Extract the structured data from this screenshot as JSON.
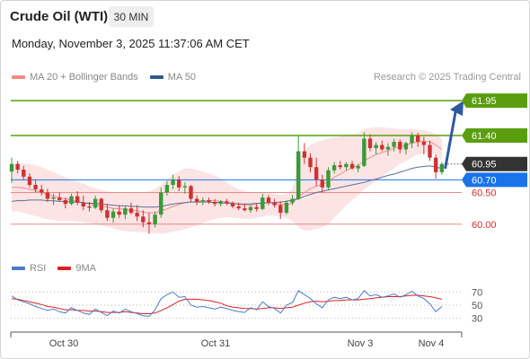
{
  "header": {
    "instrument": "Crude Oil (WTI)",
    "timeframe": "30 MIN",
    "timestamp": "Monday, November 3, 2025 11:37:06 AM CET"
  },
  "legend": {
    "ma20_label": "MA 20 + Bollinger Bands",
    "ma20_color": "#f28b82",
    "ma50_label": "MA 50",
    "ma50_color": "#2d5a8c"
  },
  "credit": "Research © 2025 Trading Central",
  "rsi_legend": {
    "rsi_label": "RSI",
    "rsi_color": "#4a7cc7",
    "ma_label": "9MA",
    "ma_color": "#d92121"
  },
  "chart_data": {
    "type": "candlestick",
    "y_range": [
      59.6,
      62.15
    ],
    "x_labels": [
      "Oct 30",
      "Oct 31",
      "Nov 3",
      "Nov 4"
    ],
    "candles": [
      {
        "o": 60.83,
        "h": 61.05,
        "l": 60.65,
        "c": 60.95
      },
      {
        "o": 60.95,
        "h": 61.0,
        "l": 60.8,
        "c": 60.86
      },
      {
        "o": 60.86,
        "h": 60.92,
        "l": 60.7,
        "c": 60.75
      },
      {
        "o": 60.75,
        "h": 60.8,
        "l": 60.58,
        "c": 60.62
      },
      {
        "o": 60.62,
        "h": 60.7,
        "l": 60.5,
        "c": 60.55
      },
      {
        "o": 60.55,
        "h": 60.62,
        "l": 60.45,
        "c": 60.5
      },
      {
        "o": 60.5,
        "h": 60.56,
        "l": 60.35,
        "c": 60.4
      },
      {
        "o": 60.4,
        "h": 60.48,
        "l": 60.3,
        "c": 60.42
      },
      {
        "o": 60.42,
        "h": 60.5,
        "l": 60.35,
        "c": 60.38
      },
      {
        "o": 60.38,
        "h": 60.42,
        "l": 60.25,
        "c": 60.32
      },
      {
        "o": 60.32,
        "h": 60.48,
        "l": 60.3,
        "c": 60.44
      },
      {
        "o": 60.44,
        "h": 60.52,
        "l": 60.3,
        "c": 60.34
      },
      {
        "o": 60.34,
        "h": 60.45,
        "l": 60.22,
        "c": 60.28
      },
      {
        "o": 60.28,
        "h": 60.35,
        "l": 60.2,
        "c": 60.26
      },
      {
        "o": 60.26,
        "h": 60.45,
        "l": 60.24,
        "c": 60.4
      },
      {
        "o": 60.4,
        "h": 60.42,
        "l": 60.18,
        "c": 60.22
      },
      {
        "o": 60.22,
        "h": 60.32,
        "l": 60.05,
        "c": 60.1
      },
      {
        "o": 60.1,
        "h": 60.25,
        "l": 60.02,
        "c": 60.2
      },
      {
        "o": 60.2,
        "h": 60.3,
        "l": 60.1,
        "c": 60.15
      },
      {
        "o": 60.15,
        "h": 60.28,
        "l": 60.08,
        "c": 60.25
      },
      {
        "o": 60.25,
        "h": 60.34,
        "l": 60.15,
        "c": 60.18
      },
      {
        "o": 60.18,
        "h": 60.3,
        "l": 60.05,
        "c": 60.12
      },
      {
        "o": 60.12,
        "h": 60.22,
        "l": 59.95,
        "c": 60.03
      },
      {
        "o": 60.03,
        "h": 60.18,
        "l": 59.85,
        "c": 60.0
      },
      {
        "o": 60.0,
        "h": 60.2,
        "l": 59.95,
        "c": 60.15
      },
      {
        "o": 60.15,
        "h": 60.58,
        "l": 60.1,
        "c": 60.5
      },
      {
        "o": 60.5,
        "h": 60.68,
        "l": 60.45,
        "c": 60.62
      },
      {
        "o": 60.62,
        "h": 60.78,
        "l": 60.55,
        "c": 60.7
      },
      {
        "o": 60.7,
        "h": 60.76,
        "l": 60.52,
        "c": 60.58
      },
      {
        "o": 60.58,
        "h": 60.66,
        "l": 60.48,
        "c": 60.6
      },
      {
        "o": 60.6,
        "h": 60.62,
        "l": 60.35,
        "c": 60.4
      },
      {
        "o": 60.4,
        "h": 60.45,
        "l": 60.3,
        "c": 60.36
      },
      {
        "o": 60.36,
        "h": 60.42,
        "l": 60.3,
        "c": 60.38
      },
      {
        "o": 60.38,
        "h": 60.42,
        "l": 60.32,
        "c": 60.35
      },
      {
        "o": 60.35,
        "h": 60.4,
        "l": 60.28,
        "c": 60.32
      },
      {
        "o": 60.32,
        "h": 60.38,
        "l": 60.28,
        "c": 60.36
      },
      {
        "o": 60.36,
        "h": 60.4,
        "l": 60.3,
        "c": 60.33
      },
      {
        "o": 60.33,
        "h": 60.36,
        "l": 60.25,
        "c": 60.28
      },
      {
        "o": 60.28,
        "h": 60.34,
        "l": 60.22,
        "c": 60.25
      },
      {
        "o": 60.25,
        "h": 60.32,
        "l": 60.2,
        "c": 60.22
      },
      {
        "o": 60.22,
        "h": 60.3,
        "l": 60.18,
        "c": 60.27
      },
      {
        "o": 60.27,
        "h": 60.32,
        "l": 60.2,
        "c": 60.24
      },
      {
        "o": 60.24,
        "h": 60.48,
        "l": 60.22,
        "c": 60.42
      },
      {
        "o": 60.42,
        "h": 60.46,
        "l": 60.3,
        "c": 60.34
      },
      {
        "o": 60.34,
        "h": 60.4,
        "l": 60.26,
        "c": 60.3
      },
      {
        "o": 60.3,
        "h": 60.36,
        "l": 60.08,
        "c": 60.18
      },
      {
        "o": 60.18,
        "h": 60.38,
        "l": 60.15,
        "c": 60.34
      },
      {
        "o": 60.34,
        "h": 60.46,
        "l": 60.3,
        "c": 60.4
      },
      {
        "o": 60.4,
        "h": 61.4,
        "l": 60.38,
        "c": 61.15
      },
      {
        "o": 61.15,
        "h": 61.28,
        "l": 60.95,
        "c": 61.05
      },
      {
        "o": 61.05,
        "h": 61.12,
        "l": 60.82,
        "c": 60.9
      },
      {
        "o": 60.9,
        "h": 61.05,
        "l": 60.6,
        "c": 60.7
      },
      {
        "o": 60.7,
        "h": 60.78,
        "l": 60.5,
        "c": 60.58
      },
      {
        "o": 60.58,
        "h": 60.9,
        "l": 60.55,
        "c": 60.85
      },
      {
        "o": 60.85,
        "h": 60.98,
        "l": 60.8,
        "c": 60.93
      },
      {
        "o": 60.93,
        "h": 61.0,
        "l": 60.86,
        "c": 60.9
      },
      {
        "o": 60.9,
        "h": 60.98,
        "l": 60.85,
        "c": 60.95
      },
      {
        "o": 60.95,
        "h": 61.0,
        "l": 60.86,
        "c": 60.88
      },
      {
        "o": 60.88,
        "h": 60.95,
        "l": 60.82,
        "c": 60.92
      },
      {
        "o": 60.92,
        "h": 61.45,
        "l": 60.9,
        "c": 61.35
      },
      {
        "o": 61.35,
        "h": 61.42,
        "l": 61.15,
        "c": 61.2
      },
      {
        "o": 61.2,
        "h": 61.3,
        "l": 61.1,
        "c": 61.25
      },
      {
        "o": 61.25,
        "h": 61.32,
        "l": 61.15,
        "c": 61.18
      },
      {
        "o": 61.18,
        "h": 61.28,
        "l": 61.08,
        "c": 61.22
      },
      {
        "o": 61.22,
        "h": 61.35,
        "l": 61.15,
        "c": 61.3
      },
      {
        "o": 61.3,
        "h": 61.34,
        "l": 61.12,
        "c": 61.18
      },
      {
        "o": 61.18,
        "h": 61.3,
        "l": 61.1,
        "c": 61.28
      },
      {
        "o": 61.28,
        "h": 61.45,
        "l": 61.2,
        "c": 61.4
      },
      {
        "o": 61.4,
        "h": 61.44,
        "l": 61.22,
        "c": 61.3
      },
      {
        "o": 61.3,
        "h": 61.38,
        "l": 61.1,
        "c": 61.25
      },
      {
        "o": 61.25,
        "h": 61.32,
        "l": 61.0,
        "c": 61.05
      },
      {
        "o": 61.05,
        "h": 61.1,
        "l": 60.72,
        "c": 60.82
      },
      {
        "o": 60.82,
        "h": 60.98,
        "l": 60.78,
        "c": 60.95
      }
    ],
    "ma20": [
      60.58,
      60.58,
      60.57,
      60.55,
      60.53,
      60.5,
      60.47,
      60.44,
      60.42,
      60.4,
      60.38,
      60.36,
      60.34,
      60.32,
      60.3,
      60.29,
      60.27,
      60.25,
      60.24,
      60.23,
      60.22,
      60.21,
      60.19,
      60.18,
      60.18,
      60.21,
      60.24,
      60.28,
      60.31,
      60.34,
      60.35,
      60.36,
      60.37,
      60.37,
      60.37,
      60.36,
      60.35,
      60.33,
      60.31,
      60.3,
      60.3,
      60.32,
      60.34,
      60.34,
      60.33,
      60.31,
      60.31,
      60.33,
      60.44,
      60.5,
      60.56,
      60.6,
      60.62,
      60.68,
      60.74,
      60.79,
      60.85,
      60.89,
      60.93,
      61.0,
      61.05,
      61.1,
      61.13,
      61.16,
      61.2,
      61.22,
      61.25,
      61.28,
      61.3,
      61.31,
      61.3,
      61.25,
      61.18
    ],
    "bb_upper": [
      60.95,
      60.96,
      60.96,
      60.95,
      60.93,
      60.9,
      60.86,
      60.82,
      60.78,
      60.74,
      60.7,
      60.67,
      60.64,
      60.6,
      60.57,
      60.54,
      60.52,
      60.5,
      60.5,
      60.5,
      60.5,
      60.5,
      60.5,
      60.52,
      60.55,
      60.62,
      60.7,
      60.78,
      60.84,
      60.88,
      60.88,
      60.86,
      60.83,
      60.8,
      60.77,
      60.72,
      60.66,
      60.6,
      60.55,
      60.52,
      60.5,
      60.5,
      60.5,
      60.5,
      60.48,
      60.46,
      60.48,
      60.55,
      61.0,
      61.15,
      61.25,
      61.3,
      61.32,
      61.35,
      61.37,
      61.38,
      61.4,
      61.42,
      61.44,
      61.5,
      61.52,
      61.53,
      61.53,
      61.52,
      61.51,
      61.5,
      61.5,
      61.5,
      61.49,
      61.48,
      61.46,
      61.42,
      61.35
    ],
    "bb_lower": [
      60.2,
      60.2,
      60.18,
      60.15,
      60.13,
      60.1,
      60.08,
      60.06,
      60.05,
      60.05,
      60.05,
      60.04,
      60.03,
      60.02,
      60.0,
      59.98,
      59.96,
      59.93,
      59.9,
      59.89,
      59.88,
      59.88,
      59.87,
      59.86,
      59.86,
      59.85,
      59.86,
      59.88,
      59.9,
      59.92,
      59.95,
      59.98,
      60.02,
      60.05,
      60.08,
      60.1,
      60.11,
      60.1,
      60.09,
      60.08,
      60.08,
      60.1,
      60.12,
      60.14,
      60.14,
      60.12,
      60.1,
      60.05,
      59.95,
      59.9,
      59.9,
      59.93,
      59.95,
      60.0,
      60.1,
      60.2,
      60.3,
      60.38,
      60.45,
      60.55,
      60.62,
      60.68,
      60.75,
      60.82,
      60.88,
      60.95,
      61.0,
      61.05,
      61.1,
      61.12,
      61.14,
      61.1,
      61.0
    ],
    "ma50": [
      60.36,
      60.37,
      60.37,
      60.38,
      60.38,
      60.38,
      60.37,
      60.37,
      60.36,
      60.36,
      60.35,
      60.35,
      60.34,
      60.33,
      60.33,
      60.32,
      60.31,
      60.3,
      60.29,
      60.29,
      60.28,
      60.28,
      60.27,
      60.27,
      60.27,
      60.28,
      60.3,
      60.32,
      60.33,
      60.34,
      60.35,
      60.35,
      60.35,
      60.35,
      60.34,
      60.34,
      60.33,
      60.33,
      60.32,
      60.32,
      60.32,
      60.33,
      60.33,
      60.34,
      60.34,
      60.35,
      60.36,
      60.38,
      60.4,
      60.44,
      60.47,
      60.5,
      60.52,
      60.54,
      60.56,
      60.58,
      60.6,
      60.62,
      60.64,
      60.66,
      60.69,
      60.71,
      60.74,
      60.77,
      60.79,
      60.82,
      60.85,
      60.88,
      60.9,
      60.91,
      60.92,
      60.9,
      60.88
    ],
    "levels": [
      {
        "value": 61.95,
        "label": "61.95",
        "kind": "resistance",
        "color": "#5a9e0f"
      },
      {
        "value": 61.4,
        "label": "61.40",
        "kind": "resistance",
        "color": "#5a9e0f"
      },
      {
        "value": 60.95,
        "label": "60.95",
        "kind": "last",
        "color": "#333333"
      },
      {
        "value": 60.7,
        "label": "60.70",
        "kind": "pivot",
        "color": "#1a73e8"
      },
      {
        "value": 60.5,
        "label": "60.50",
        "kind": "support",
        "color": "#d32f2f"
      },
      {
        "value": 60.0,
        "label": "60.00",
        "kind": "support",
        "color": "#d32f2f"
      }
    ],
    "forecast": {
      "from": 60.95,
      "to": 61.95,
      "color": "#2d5a9e"
    },
    "rsi": {
      "y_range": [
        20,
        80
      ],
      "ticks": [
        70,
        50,
        30
      ],
      "rsi": [
        64,
        58,
        55,
        52,
        48,
        45,
        42,
        44,
        40,
        38,
        46,
        42,
        38,
        36,
        44,
        39,
        34,
        41,
        38,
        44,
        40,
        37,
        34,
        33,
        43,
        60,
        66,
        70,
        62,
        63,
        50,
        47,
        48,
        46,
        44,
        47,
        45,
        42,
        40,
        39,
        46,
        43,
        55,
        48,
        45,
        38,
        50,
        54,
        72,
        66,
        60,
        52,
        46,
        58,
        62,
        60,
        62,
        58,
        60,
        72,
        64,
        66,
        62,
        64,
        67,
        62,
        66,
        71,
        64,
        60,
        52,
        40,
        48
      ],
      "ma9": [
        60,
        59,
        57,
        55,
        53,
        51,
        48,
        47,
        45,
        43,
        43,
        42,
        42,
        41,
        41,
        40,
        39,
        39,
        39,
        40,
        39,
        38,
        37,
        37,
        38,
        42,
        46,
        51,
        56,
        59,
        59,
        59,
        58,
        57,
        55,
        53,
        49,
        47,
        46,
        45,
        45,
        44,
        45,
        46,
        46,
        45,
        46,
        47,
        50,
        53,
        55,
        56,
        55,
        56,
        57,
        57,
        58,
        58,
        58,
        59,
        60,
        61,
        62,
        63,
        63,
        63,
        64,
        65,
        65,
        64,
        63,
        61,
        59
      ]
    }
  }
}
